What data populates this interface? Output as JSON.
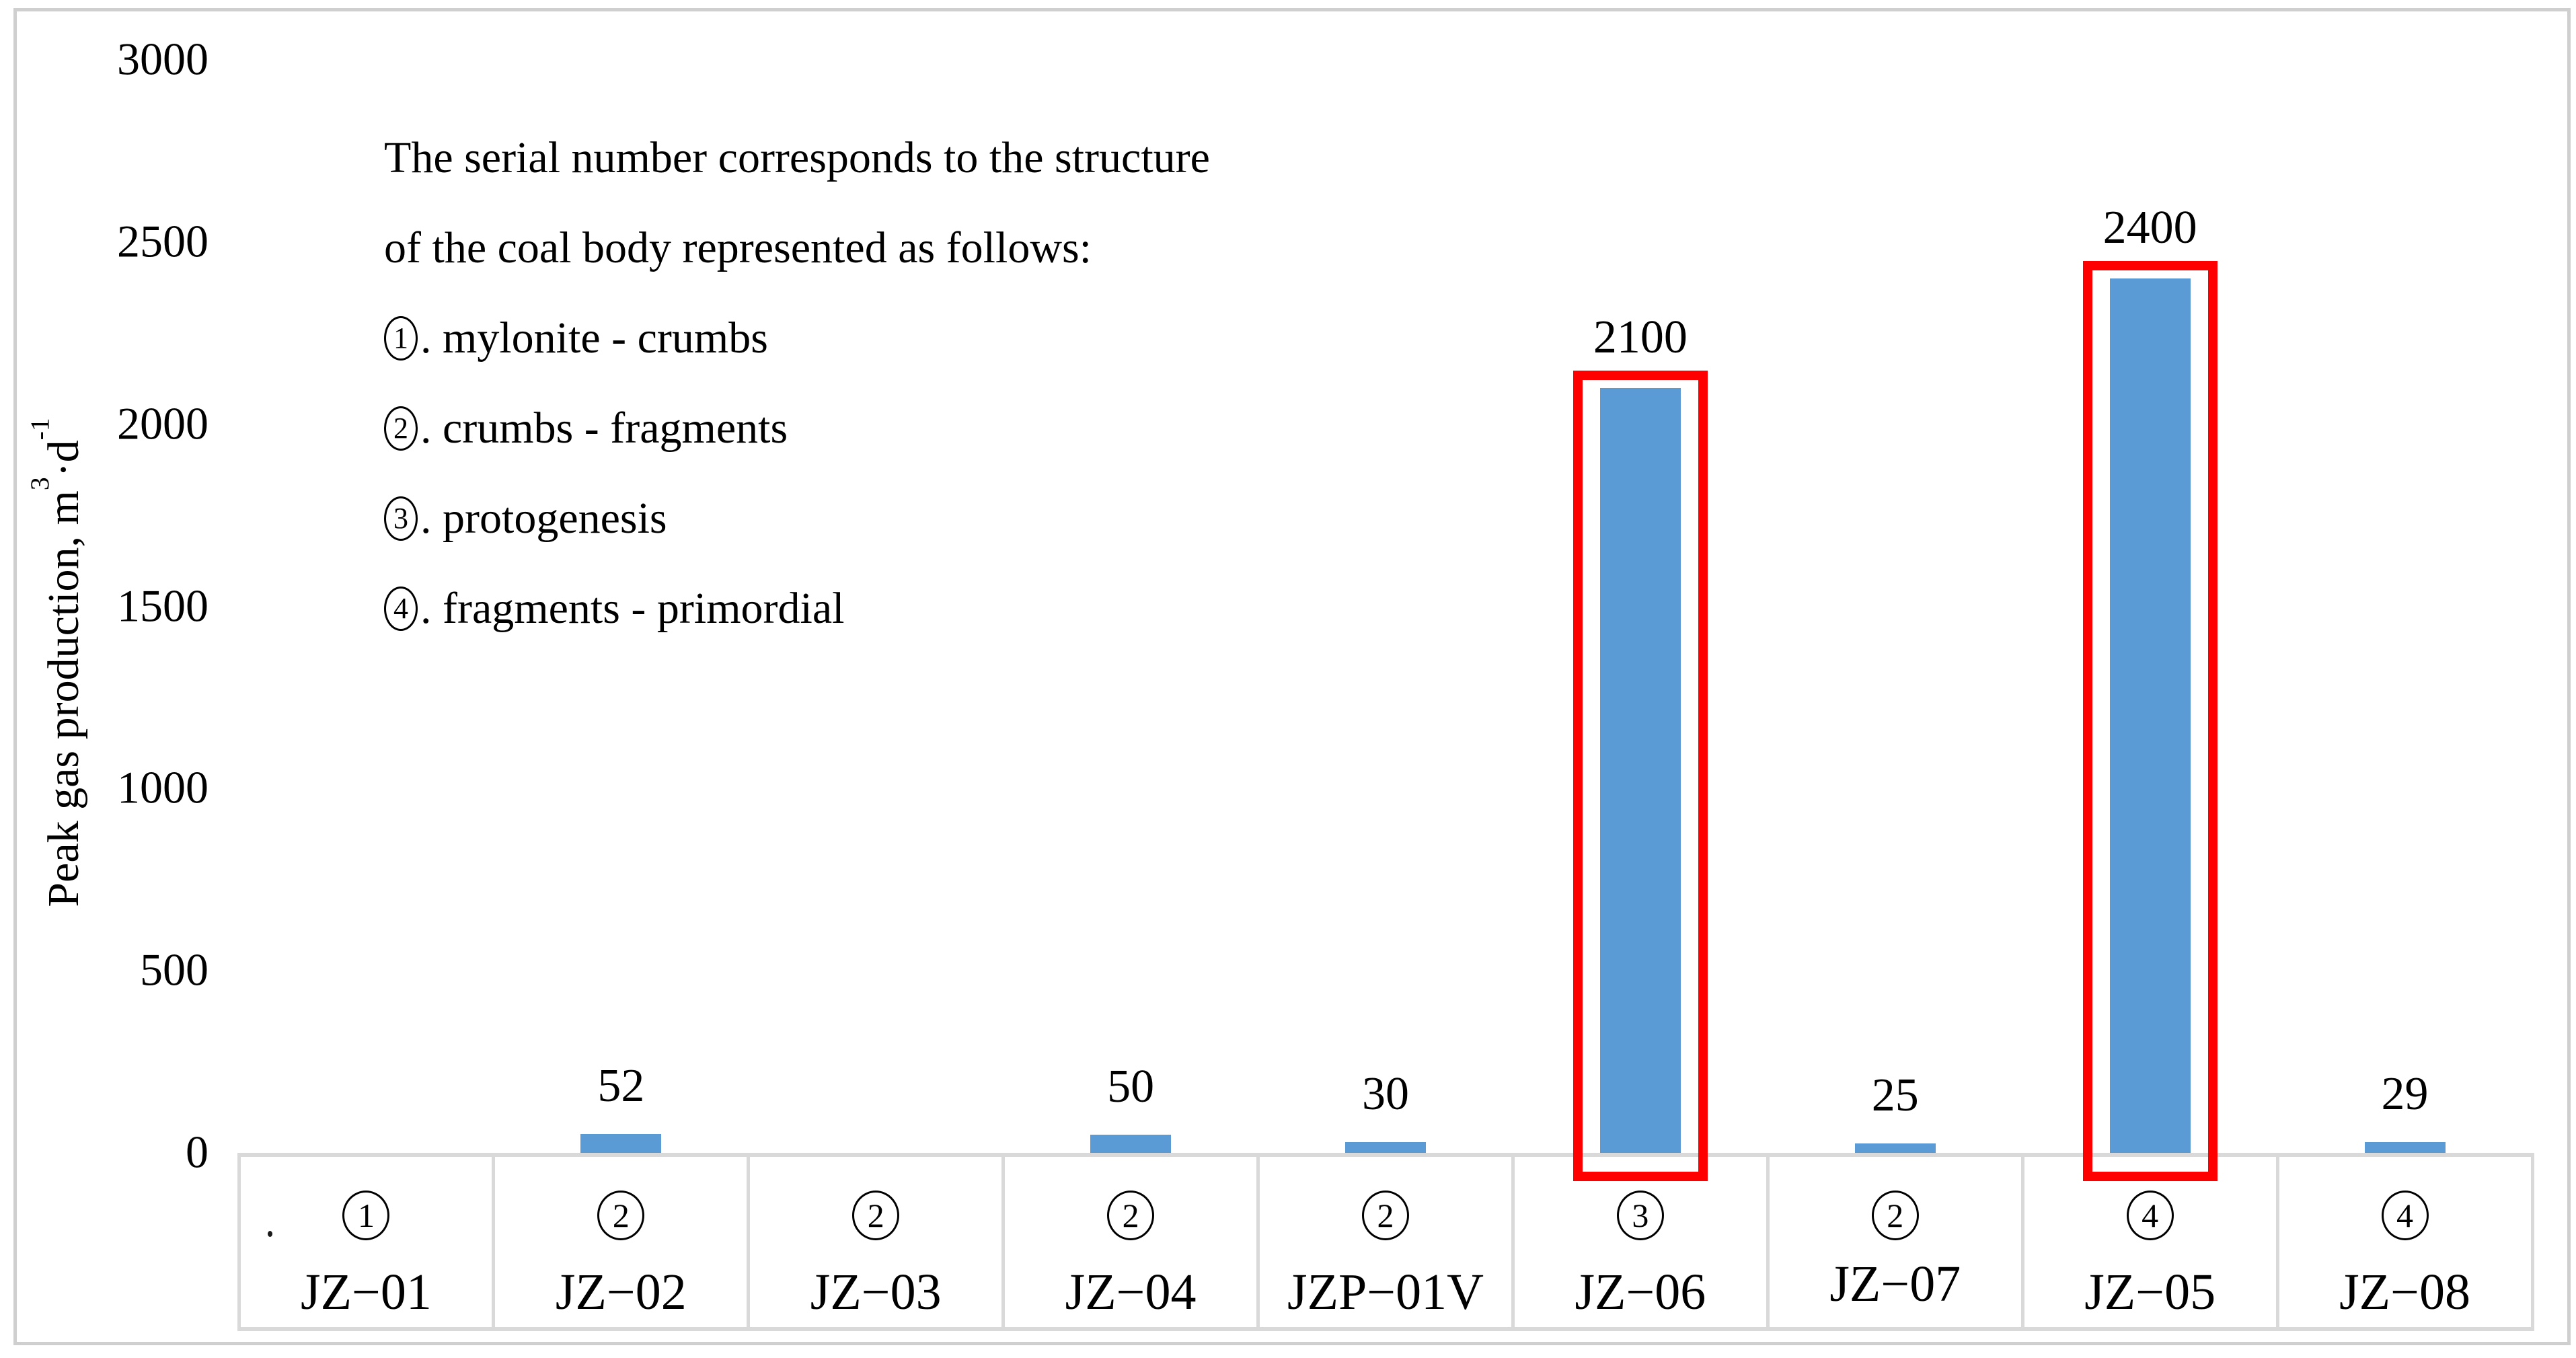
{
  "chart_data": {
    "type": "bar",
    "title": "",
    "xlabel": "",
    "ylabel": "Peak gas production, m³·d⁻¹",
    "ylabel_parts": {
      "main": "Peak gas production, m",
      "sup1": "3",
      "mid": "·d",
      "sup2": "-1"
    },
    "ylim": [
      0,
      3000
    ],
    "ytick_interval": 500,
    "yticks": [
      "0",
      "500",
      "1000",
      "1500",
      "2000",
      "2500",
      "3000"
    ],
    "grid": false,
    "legend_position": "none",
    "categories": [
      "JZ−01",
      "JZ−02",
      "JZ−03",
      "JZ−04",
      "JZP−01V",
      "JZ−06",
      "JZ−07",
      "JZ−05",
      "JZ−08"
    ],
    "structure_numbers": [
      "1",
      "2",
      "2",
      "2",
      "2",
      "3",
      "2",
      "4",
      "4"
    ],
    "values": [
      0,
      52,
      0,
      50,
      30,
      2100,
      25,
      2400,
      29
    ],
    "data_labels": [
      "",
      "52",
      "",
      "50",
      "30",
      "2100",
      "25",
      "2400",
      "29"
    ],
    "highlighted_categories": [
      "JZ−06",
      "JZ−05"
    ],
    "raised_labels": [
      "JZ−07"
    ]
  },
  "annotation": {
    "lines": [
      {
        "num": "",
        "text": "The serial number corresponds to the structure"
      },
      {
        "num": "",
        "text": "of the coal body represented as follows:"
      },
      {
        "num": "1",
        "text": ". mylonite - crumbs"
      },
      {
        "num": "2",
        "text": ". crumbs - fragments"
      },
      {
        "num": "3",
        "text": ". protogenesis"
      },
      {
        "num": "4",
        "text": ". fragments - primordial"
      }
    ]
  },
  "colors": {
    "bar": "#5B9BD5",
    "highlight_box": "#FF0000",
    "table_lines": "#D9D9D9",
    "figure_border": "#CFCFCF",
    "text": "#000000"
  }
}
